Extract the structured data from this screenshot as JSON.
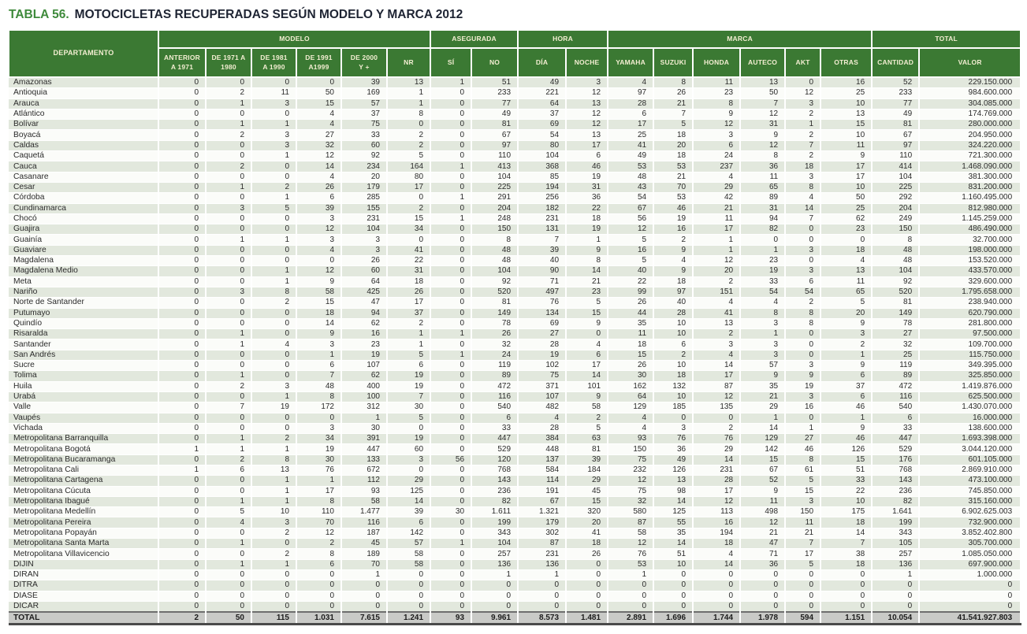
{
  "title": {
    "prefix": "TABLA 56.",
    "text": "MOTOCICLETAS RECUPERADAS SEGÚN MODELO Y MARCA 2012"
  },
  "colors": {
    "header_green": "#3b7933",
    "header_text": "#f3eed2",
    "title_green": "#3e8a3b",
    "title_dark": "#1e2433",
    "row_stripe_green": "#e2e8dd",
    "row_white": "#fbfcf9",
    "total_row_gray": "#c9cac7"
  },
  "table": {
    "dept_header": "DEPARTAMENTO",
    "groups": [
      {
        "label": "MODELO",
        "span": 6
      },
      {
        "label": "ASEGURADA",
        "span": 2
      },
      {
        "label": "HORA",
        "span": 2
      },
      {
        "label": "MARCA",
        "span": 6
      },
      {
        "label": "TOTAL",
        "span": 2
      }
    ],
    "sub_headers": [
      "ANTERIOR\nA 1971",
      "DE 1971 A\n1980",
      "DE 1981\nA 1990",
      "DE 1991\nA1999",
      "DE 2000\nY +",
      "NR",
      "SÍ",
      "NO",
      "DÍA",
      "NOCHE",
      "YAMAHA",
      "SUZUKI",
      "HONDA",
      "AUTECO",
      "AKT",
      "OTRAS",
      "CANTIDAD",
      "VALOR"
    ],
    "rows": [
      [
        "Amazonas",
        "0",
        "0",
        "0",
        "0",
        "39",
        "13",
        "1",
        "51",
        "49",
        "3",
        "4",
        "8",
        "11",
        "13",
        "0",
        "16",
        "52",
        "229.150.000"
      ],
      [
        "Antioquia",
        "0",
        "2",
        "11",
        "50",
        "169",
        "1",
        "0",
        "233",
        "221",
        "12",
        "97",
        "26",
        "23",
        "50",
        "12",
        "25",
        "233",
        "984.600.000"
      ],
      [
        "Arauca",
        "0",
        "1",
        "3",
        "15",
        "57",
        "1",
        "0",
        "77",
        "64",
        "13",
        "28",
        "21",
        "8",
        "7",
        "3",
        "10",
        "77",
        "304.085.000"
      ],
      [
        "Atlántico",
        "0",
        "0",
        "0",
        "4",
        "37",
        "8",
        "0",
        "49",
        "37",
        "12",
        "6",
        "7",
        "9",
        "12",
        "2",
        "13",
        "49",
        "174.769.000"
      ],
      [
        "Bolívar",
        "0",
        "1",
        "1",
        "4",
        "75",
        "0",
        "0",
        "81",
        "69",
        "12",
        "17",
        "5",
        "12",
        "31",
        "1",
        "15",
        "81",
        "280.000.000"
      ],
      [
        "Boyacá",
        "0",
        "2",
        "3",
        "27",
        "33",
        "2",
        "0",
        "67",
        "54",
        "13",
        "25",
        "18",
        "3",
        "9",
        "2",
        "10",
        "67",
        "204.950.000"
      ],
      [
        "Caldas",
        "0",
        "0",
        "3",
        "32",
        "60",
        "2",
        "0",
        "97",
        "80",
        "17",
        "41",
        "20",
        "6",
        "12",
        "7",
        "11",
        "97",
        "324.220.000"
      ],
      [
        "Caquetá",
        "0",
        "0",
        "1",
        "12",
        "92",
        "5",
        "0",
        "110",
        "104",
        "6",
        "49",
        "18",
        "24",
        "8",
        "2",
        "9",
        "110",
        "721.300.000"
      ],
      [
        "Cauca",
        "0",
        "2",
        "0",
        "14",
        "234",
        "164",
        "1",
        "413",
        "368",
        "46",
        "53",
        "53",
        "237",
        "36",
        "18",
        "17",
        "414",
        "1.468.090.000"
      ],
      [
        "Casanare",
        "0",
        "0",
        "0",
        "4",
        "20",
        "80",
        "0",
        "104",
        "85",
        "19",
        "48",
        "21",
        "4",
        "11",
        "3",
        "17",
        "104",
        "381.300.000"
      ],
      [
        "Cesar",
        "0",
        "1",
        "2",
        "26",
        "179",
        "17",
        "0",
        "225",
        "194",
        "31",
        "43",
        "70",
        "29",
        "65",
        "8",
        "10",
        "225",
        "831.200.000"
      ],
      [
        "Córdoba",
        "0",
        "0",
        "1",
        "6",
        "285",
        "0",
        "1",
        "291",
        "256",
        "36",
        "54",
        "53",
        "42",
        "89",
        "4",
        "50",
        "292",
        "1.160.495.000"
      ],
      [
        "Cundinamarca",
        "0",
        "3",
        "5",
        "39",
        "155",
        "2",
        "0",
        "204",
        "182",
        "22",
        "67",
        "46",
        "21",
        "31",
        "14",
        "25",
        "204",
        "812.980.000"
      ],
      [
        "Chocó",
        "0",
        "0",
        "0",
        "3",
        "231",
        "15",
        "1",
        "248",
        "231",
        "18",
        "56",
        "19",
        "11",
        "94",
        "7",
        "62",
        "249",
        "1.145.259.000"
      ],
      [
        "Guajira",
        "0",
        "0",
        "0",
        "12",
        "104",
        "34",
        "0",
        "150",
        "131",
        "19",
        "12",
        "16",
        "17",
        "82",
        "0",
        "23",
        "150",
        "486.490.000"
      ],
      [
        "Guainía",
        "0",
        "1",
        "1",
        "3",
        "3",
        "0",
        "0",
        "8",
        "7",
        "1",
        "5",
        "2",
        "1",
        "0",
        "0",
        "0",
        "8",
        "32.700.000"
      ],
      [
        "Guaviare",
        "0",
        "0",
        "0",
        "4",
        "3",
        "41",
        "0",
        "48",
        "39",
        "9",
        "16",
        "9",
        "1",
        "1",
        "3",
        "18",
        "48",
        "198.000.000"
      ],
      [
        "Magdalena",
        "0",
        "0",
        "0",
        "0",
        "26",
        "22",
        "0",
        "48",
        "40",
        "8",
        "5",
        "4",
        "12",
        "23",
        "0",
        "4",
        "48",
        "153.520.000"
      ],
      [
        "Magdalena Medio",
        "0",
        "0",
        "1",
        "12",
        "60",
        "31",
        "0",
        "104",
        "90",
        "14",
        "40",
        "9",
        "20",
        "19",
        "3",
        "13",
        "104",
        "433.570.000"
      ],
      [
        "Meta",
        "0",
        "0",
        "1",
        "9",
        "64",
        "18",
        "0",
        "92",
        "71",
        "21",
        "22",
        "18",
        "2",
        "33",
        "6",
        "11",
        "92",
        "329.600.000"
      ],
      [
        "Nariño",
        "0",
        "3",
        "8",
        "58",
        "425",
        "26",
        "0",
        "520",
        "497",
        "23",
        "99",
        "97",
        "151",
        "54",
        "54",
        "65",
        "520",
        "1.795.658.000"
      ],
      [
        "Norte de Santander",
        "0",
        "0",
        "2",
        "15",
        "47",
        "17",
        "0",
        "81",
        "76",
        "5",
        "26",
        "40",
        "4",
        "4",
        "2",
        "5",
        "81",
        "238.940.000"
      ],
      [
        "Putumayo",
        "0",
        "0",
        "0",
        "18",
        "94",
        "37",
        "0",
        "149",
        "134",
        "15",
        "44",
        "28",
        "41",
        "8",
        "8",
        "20",
        "149",
        "620.790.000"
      ],
      [
        "Quindío",
        "0",
        "0",
        "0",
        "14",
        "62",
        "2",
        "0",
        "78",
        "69",
        "9",
        "35",
        "10",
        "13",
        "3",
        "8",
        "9",
        "78",
        "281.800.000"
      ],
      [
        "Risaralda",
        "0",
        "1",
        "0",
        "9",
        "16",
        "1",
        "1",
        "26",
        "27",
        "0",
        "11",
        "10",
        "2",
        "1",
        "0",
        "3",
        "27",
        "97.500.000"
      ],
      [
        "Santander",
        "0",
        "1",
        "4",
        "3",
        "23",
        "1",
        "0",
        "32",
        "28",
        "4",
        "18",
        "6",
        "3",
        "3",
        "0",
        "2",
        "32",
        "109.700.000"
      ],
      [
        "San Andrés",
        "0",
        "0",
        "0",
        "1",
        "19",
        "5",
        "1",
        "24",
        "19",
        "6",
        "15",
        "2",
        "4",
        "3",
        "0",
        "1",
        "25",
        "115.750.000"
      ],
      [
        "Sucre",
        "0",
        "0",
        "0",
        "6",
        "107",
        "6",
        "0",
        "119",
        "102",
        "17",
        "26",
        "10",
        "14",
        "57",
        "3",
        "9",
        "119",
        "349.395.000"
      ],
      [
        "Tolima",
        "0",
        "1",
        "0",
        "7",
        "62",
        "19",
        "0",
        "89",
        "75",
        "14",
        "30",
        "18",
        "17",
        "9",
        "9",
        "6",
        "89",
        "325.850.000"
      ],
      [
        "Huila",
        "0",
        "2",
        "3",
        "48",
        "400",
        "19",
        "0",
        "472",
        "371",
        "101",
        "162",
        "132",
        "87",
        "35",
        "19",
        "37",
        "472",
        "1.419.876.000"
      ],
      [
        "Urabá",
        "0",
        "0",
        "1",
        "8",
        "100",
        "7",
        "0",
        "116",
        "107",
        "9",
        "64",
        "10",
        "12",
        "21",
        "3",
        "6",
        "116",
        "625.500.000"
      ],
      [
        "Valle",
        "0",
        "7",
        "19",
        "172",
        "312",
        "30",
        "0",
        "540",
        "482",
        "58",
        "129",
        "185",
        "135",
        "29",
        "16",
        "46",
        "540",
        "1.430.070.000"
      ],
      [
        "Vaupés",
        "0",
        "0",
        "0",
        "0",
        "1",
        "5",
        "0",
        "6",
        "4",
        "2",
        "4",
        "0",
        "0",
        "1",
        "0",
        "1",
        "6",
        "16.000.000"
      ],
      [
        "Vichada",
        "0",
        "0",
        "0",
        "3",
        "30",
        "0",
        "0",
        "33",
        "28",
        "5",
        "4",
        "3",
        "2",
        "14",
        "1",
        "9",
        "33",
        "138.600.000"
      ],
      [
        "Metropolitana Barranquilla",
        "0",
        "1",
        "2",
        "34",
        "391",
        "19",
        "0",
        "447",
        "384",
        "63",
        "93",
        "76",
        "76",
        "129",
        "27",
        "46",
        "447",
        "1.693.398.000"
      ],
      [
        "Metropolitana Bogotá",
        "1",
        "1",
        "1",
        "19",
        "447",
        "60",
        "0",
        "529",
        "448",
        "81",
        "150",
        "36",
        "29",
        "142",
        "46",
        "126",
        "529",
        "3.044.120.000"
      ],
      [
        "Metropolitana Bucaramanga",
        "0",
        "2",
        "8",
        "30",
        "133",
        "3",
        "56",
        "120",
        "137",
        "39",
        "75",
        "49",
        "14",
        "15",
        "8",
        "15",
        "176",
        "601.105.000"
      ],
      [
        "Metropolitana Cali",
        "1",
        "6",
        "13",
        "76",
        "672",
        "0",
        "0",
        "768",
        "584",
        "184",
        "232",
        "126",
        "231",
        "67",
        "61",
        "51",
        "768",
        "2.869.910.000"
      ],
      [
        "Metropolitana Cartagena",
        "0",
        "0",
        "1",
        "1",
        "112",
        "29",
        "0",
        "143",
        "114",
        "29",
        "12",
        "13",
        "28",
        "52",
        "5",
        "33",
        "143",
        "473.100.000"
      ],
      [
        "Metropolitana Cúcuta",
        "0",
        "0",
        "1",
        "17",
        "93",
        "125",
        "0",
        "236",
        "191",
        "45",
        "75",
        "98",
        "17",
        "9",
        "15",
        "22",
        "236",
        "745.850.000"
      ],
      [
        "Metropolitana Ibagué",
        "0",
        "1",
        "1",
        "8",
        "58",
        "14",
        "0",
        "82",
        "67",
        "15",
        "32",
        "14",
        "12",
        "11",
        "3",
        "10",
        "82",
        "315.160.000"
      ],
      [
        "Metropolitana Medellín",
        "0",
        "5",
        "10",
        "110",
        "1.477",
        "39",
        "30",
        "1.611",
        "1.321",
        "320",
        "580",
        "125",
        "113",
        "498",
        "150",
        "175",
        "1.641",
        "6.902.625.003"
      ],
      [
        "Metropolitana Pereira",
        "0",
        "4",
        "3",
        "70",
        "116",
        "6",
        "0",
        "199",
        "179",
        "20",
        "87",
        "55",
        "16",
        "12",
        "11",
        "18",
        "199",
        "732.900.000"
      ],
      [
        "Metropolitana Popayán",
        "0",
        "0",
        "2",
        "12",
        "187",
        "142",
        "0",
        "343",
        "302",
        "41",
        "58",
        "35",
        "194",
        "21",
        "21",
        "14",
        "343",
        "3.852.402.800"
      ],
      [
        "Metropolitana Santa Marta",
        "0",
        "1",
        "0",
        "2",
        "45",
        "57",
        "1",
        "104",
        "87",
        "18",
        "12",
        "14",
        "18",
        "47",
        "7",
        "7",
        "105",
        "305.700.000"
      ],
      [
        "Metropolitana Villavicencio",
        "0",
        "0",
        "2",
        "8",
        "189",
        "58",
        "0",
        "257",
        "231",
        "26",
        "76",
        "51",
        "4",
        "71",
        "17",
        "38",
        "257",
        "1.085.050.000"
      ],
      [
        "DIJIN",
        "0",
        "1",
        "1",
        "6",
        "70",
        "58",
        "0",
        "136",
        "136",
        "0",
        "53",
        "10",
        "14",
        "36",
        "5",
        "18",
        "136",
        "697.900.000"
      ],
      [
        "DIRAN",
        "0",
        "0",
        "0",
        "0",
        "1",
        "0",
        "0",
        "1",
        "1",
        "0",
        "1",
        "0",
        "0",
        "0",
        "0",
        "0",
        "1",
        "1.000.000"
      ],
      [
        "DITRA",
        "0",
        "0",
        "0",
        "0",
        "0",
        "0",
        "0",
        "0",
        "0",
        "0",
        "0",
        "0",
        "0",
        "0",
        "0",
        "0",
        "0",
        "0"
      ],
      [
        "DIASE",
        "0",
        "0",
        "0",
        "0",
        "0",
        "0",
        "0",
        "0",
        "0",
        "0",
        "0",
        "0",
        "0",
        "0",
        "0",
        "0",
        "0",
        "0"
      ],
      [
        "DICAR",
        "0",
        "0",
        "0",
        "0",
        "0",
        "0",
        "0",
        "0",
        "0",
        "0",
        "0",
        "0",
        "0",
        "0",
        "0",
        "0",
        "0",
        "0"
      ]
    ],
    "total_row": [
      "TOTAL",
      "2",
      "50",
      "115",
      "1.031",
      "7.615",
      "1.241",
      "93",
      "9.961",
      "8.573",
      "1.481",
      "2.891",
      "1.696",
      "1.744",
      "1.978",
      "594",
      "1.151",
      "10.054",
      "41.541.927.803"
    ]
  }
}
